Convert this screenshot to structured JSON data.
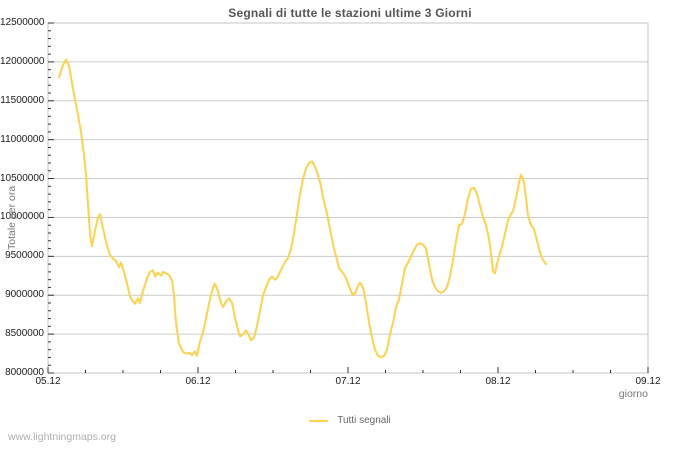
{
  "page": {
    "watermark": "www.lightningmaps.org"
  },
  "styles": {
    "line_color": "#ffd24a",
    "grid_color": "#cccccc",
    "frame_color": "#c4c4c4",
    "tick_color": "#333333",
    "title_color": "#555555",
    "axis_text_color": "#1a1a1a",
    "muted_text_color": "#777777",
    "watermark_color": "#aeaeae",
    "background": "#ffffff"
  },
  "chart_data": {
    "type": "line",
    "title": "Segnali di tutte le stazioni ultime 3 Giorni",
    "xlabel": "giorno",
    "ylabel": "Totale per ora",
    "grid": "horizontal-only",
    "legend_position": "bottom-center",
    "legend": [
      {
        "label": "Tutti segnali",
        "color": "#ffd24a"
      }
    ],
    "x_range_days": [
      0,
      4
    ],
    "x_major_step_days": 1,
    "x_minor_step_days": 0.25,
    "x_tick_labels": [
      "05.12",
      "06.12",
      "07.12",
      "08.12",
      "09.12"
    ],
    "ylim": [
      8000000,
      12500000
    ],
    "y_major_step": 500000,
    "y_minor_step": 100000,
    "y_tick_labels": [
      "8000000",
      "8500000",
      "9000000",
      "9500000",
      "10000000",
      "10500000",
      "11000000",
      "11500000",
      "12000000",
      "12500000"
    ],
    "series": [
      {
        "name": "Tutti segnali",
        "color": "#ffd24a",
        "points": [
          [
            0.073,
            11800000
          ],
          [
            0.1,
            11960000
          ],
          [
            0.12,
            12030000
          ],
          [
            0.14,
            11950000
          ],
          [
            0.167,
            11650000
          ],
          [
            0.193,
            11380000
          ],
          [
            0.22,
            11100000
          ],
          [
            0.24,
            10800000
          ],
          [
            0.253,
            10550000
          ],
          [
            0.267,
            10150000
          ],
          [
            0.28,
            9780000
          ],
          [
            0.293,
            9630000
          ],
          [
            0.313,
            9830000
          ],
          [
            0.333,
            10000000
          ],
          [
            0.347,
            10040000
          ],
          [
            0.367,
            9860000
          ],
          [
            0.387,
            9680000
          ],
          [
            0.413,
            9520000
          ],
          [
            0.433,
            9470000
          ],
          [
            0.453,
            9440000
          ],
          [
            0.473,
            9360000
          ],
          [
            0.487,
            9420000
          ],
          [
            0.507,
            9300000
          ],
          [
            0.527,
            9150000
          ],
          [
            0.547,
            8980000
          ],
          [
            0.567,
            8920000
          ],
          [
            0.58,
            8890000
          ],
          [
            0.6,
            8960000
          ],
          [
            0.613,
            8900000
          ],
          [
            0.633,
            9050000
          ],
          [
            0.66,
            9220000
          ],
          [
            0.68,
            9300000
          ],
          [
            0.7,
            9320000
          ],
          [
            0.713,
            9240000
          ],
          [
            0.733,
            9290000
          ],
          [
            0.753,
            9250000
          ],
          [
            0.767,
            9300000
          ],
          [
            0.787,
            9280000
          ],
          [
            0.807,
            9260000
          ],
          [
            0.827,
            9180000
          ],
          [
            0.84,
            9000000
          ],
          [
            0.853,
            8650000
          ],
          [
            0.873,
            8380000
          ],
          [
            0.9,
            8270000
          ],
          [
            0.92,
            8250000
          ],
          [
            0.94,
            8260000
          ],
          [
            0.96,
            8230000
          ],
          [
            0.98,
            8280000
          ],
          [
            0.993,
            8220000
          ],
          [
            1.013,
            8400000
          ],
          [
            1.033,
            8520000
          ],
          [
            1.053,
            8700000
          ],
          [
            1.08,
            8950000
          ],
          [
            1.1,
            9100000
          ],
          [
            1.113,
            9150000
          ],
          [
            1.133,
            9050000
          ],
          [
            1.153,
            8900000
          ],
          [
            1.167,
            8850000
          ],
          [
            1.187,
            8920000
          ],
          [
            1.207,
            8960000
          ],
          [
            1.227,
            8900000
          ],
          [
            1.247,
            8700000
          ],
          [
            1.267,
            8550000
          ],
          [
            1.28,
            8470000
          ],
          [
            1.3,
            8500000
          ],
          [
            1.32,
            8550000
          ],
          [
            1.34,
            8480000
          ],
          [
            1.353,
            8420000
          ],
          [
            1.373,
            8450000
          ],
          [
            1.393,
            8600000
          ],
          [
            1.413,
            8800000
          ],
          [
            1.433,
            9000000
          ],
          [
            1.453,
            9100000
          ],
          [
            1.473,
            9200000
          ],
          [
            1.493,
            9240000
          ],
          [
            1.513,
            9200000
          ],
          [
            1.527,
            9220000
          ],
          [
            1.547,
            9300000
          ],
          [
            1.567,
            9380000
          ],
          [
            1.58,
            9430000
          ],
          [
            1.6,
            9480000
          ],
          [
            1.62,
            9600000
          ],
          [
            1.64,
            9800000
          ],
          [
            1.66,
            10050000
          ],
          [
            1.68,
            10300000
          ],
          [
            1.7,
            10500000
          ],
          [
            1.72,
            10630000
          ],
          [
            1.74,
            10700000
          ],
          [
            1.76,
            10720000
          ],
          [
            1.78,
            10650000
          ],
          [
            1.8,
            10550000
          ],
          [
            1.82,
            10400000
          ],
          [
            1.84,
            10200000
          ],
          [
            1.86,
            10050000
          ],
          [
            1.88,
            9850000
          ],
          [
            1.9,
            9650000
          ],
          [
            1.92,
            9500000
          ],
          [
            1.94,
            9350000
          ],
          [
            1.96,
            9300000
          ],
          [
            1.98,
            9250000
          ],
          [
            2.0,
            9150000
          ],
          [
            2.02,
            9050000
          ],
          [
            2.033,
            9000000
          ],
          [
            2.047,
            9030000
          ],
          [
            2.067,
            9120000
          ],
          [
            2.08,
            9160000
          ],
          [
            2.1,
            9100000
          ],
          [
            2.12,
            8900000
          ],
          [
            2.14,
            8650000
          ],
          [
            2.16,
            8450000
          ],
          [
            2.18,
            8300000
          ],
          [
            2.2,
            8220000
          ],
          [
            2.22,
            8200000
          ],
          [
            2.24,
            8220000
          ],
          [
            2.26,
            8300000
          ],
          [
            2.28,
            8500000
          ],
          [
            2.3,
            8650000
          ],
          [
            2.32,
            8850000
          ],
          [
            2.34,
            8950000
          ],
          [
            2.36,
            9150000
          ],
          [
            2.38,
            9350000
          ],
          [
            2.4,
            9420000
          ],
          [
            2.42,
            9500000
          ],
          [
            2.44,
            9580000
          ],
          [
            2.46,
            9650000
          ],
          [
            2.48,
            9670000
          ],
          [
            2.5,
            9650000
          ],
          [
            2.52,
            9600000
          ],
          [
            2.54,
            9400000
          ],
          [
            2.56,
            9200000
          ],
          [
            2.58,
            9100000
          ],
          [
            2.6,
            9050000
          ],
          [
            2.62,
            9030000
          ],
          [
            2.64,
            9050000
          ],
          [
            2.66,
            9100000
          ],
          [
            2.68,
            9250000
          ],
          [
            2.7,
            9450000
          ],
          [
            2.72,
            9700000
          ],
          [
            2.74,
            9900000
          ],
          [
            2.76,
            9920000
          ],
          [
            2.78,
            10050000
          ],
          [
            2.8,
            10250000
          ],
          [
            2.82,
            10370000
          ],
          [
            2.84,
            10380000
          ],
          [
            2.86,
            10300000
          ],
          [
            2.88,
            10150000
          ],
          [
            2.9,
            10000000
          ],
          [
            2.92,
            9900000
          ],
          [
            2.94,
            9720000
          ],
          [
            2.953,
            9550000
          ],
          [
            2.967,
            9300000
          ],
          [
            2.98,
            9280000
          ],
          [
            2.993,
            9400000
          ],
          [
            3.007,
            9500000
          ],
          [
            3.027,
            9630000
          ],
          [
            3.047,
            9800000
          ],
          [
            3.067,
            9970000
          ],
          [
            3.087,
            10050000
          ],
          [
            3.1,
            10080000
          ],
          [
            3.12,
            10250000
          ],
          [
            3.14,
            10450000
          ],
          [
            3.153,
            10550000
          ],
          [
            3.173,
            10450000
          ],
          [
            3.187,
            10250000
          ],
          [
            3.2,
            10020000
          ],
          [
            3.22,
            9900000
          ],
          [
            3.24,
            9850000
          ],
          [
            3.26,
            9700000
          ],
          [
            3.28,
            9550000
          ],
          [
            3.3,
            9450000
          ],
          [
            3.32,
            9400000
          ]
        ]
      }
    ]
  }
}
